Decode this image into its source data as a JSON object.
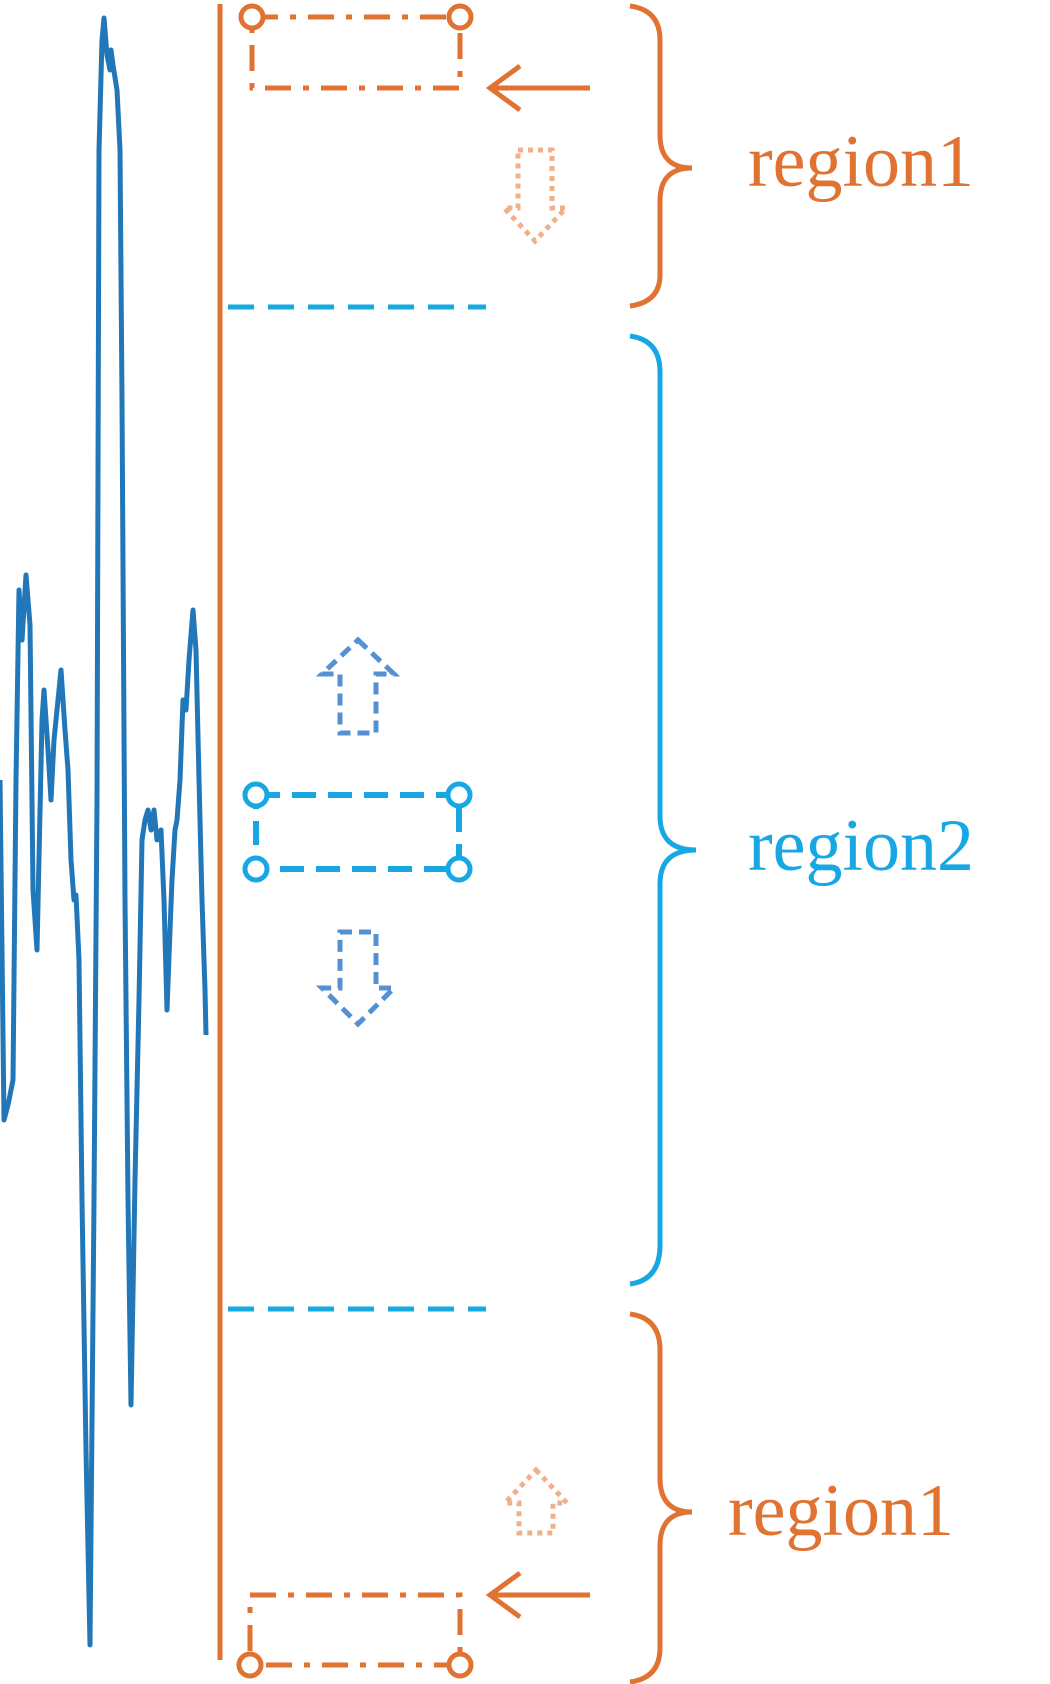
{
  "colors": {
    "orange": "#E07232",
    "orange_light": "#EFB08A",
    "cyan": "#17A8E4",
    "blue_arrow": "#5590D2",
    "waveform": "#2277B8"
  },
  "labels": {
    "region_top": "region1",
    "region_middle": "region2",
    "region_bottom": "region1"
  },
  "regions": [
    {
      "name": "region1",
      "color": "orange",
      "window_style": "dash-dot",
      "arrow_direction": "down"
    },
    {
      "name": "region2",
      "color": "cyan",
      "window_style": "dashed",
      "arrow_direction": "up-and-down"
    },
    {
      "name": "region1",
      "color": "orange",
      "window_style": "dash-dot",
      "arrow_direction": "up"
    }
  ]
}
